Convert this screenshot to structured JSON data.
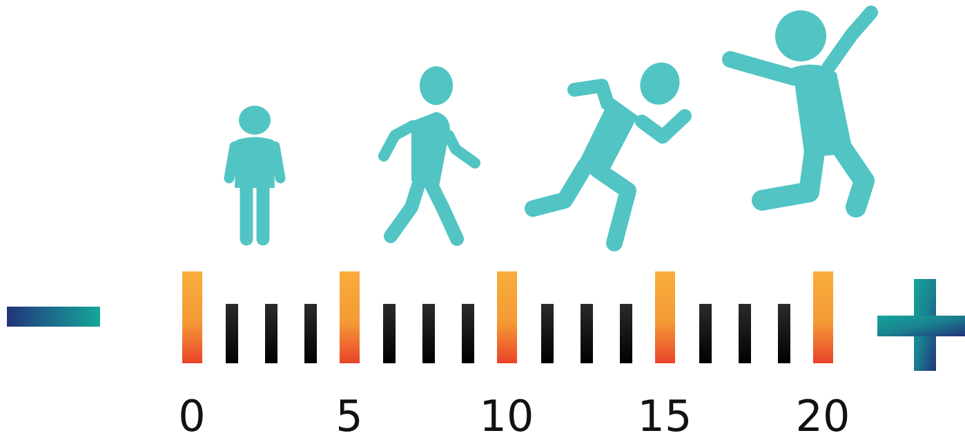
{
  "scale": {
    "labels": [
      "0",
      "5",
      "10",
      "15",
      "20"
    ]
  },
  "figures": [
    {
      "icon": "standing-person-icon"
    },
    {
      "icon": "walking-person-icon"
    },
    {
      "icon": "running-person-icon"
    },
    {
      "icon": "jumping-person-icon"
    }
  ],
  "symbols": {
    "minus_icon": "minus-icon",
    "plus_icon": "plus-icon"
  },
  "colors": {
    "figure": "#52c4c4",
    "major_tick_top": "#f8ad3c",
    "major_tick_bottom": "#e9432a",
    "minor_tick_top": "#2b2b2b",
    "minor_tick_bottom": "#000000",
    "sign_dark": "#22337a",
    "sign_teal": "#16a59a",
    "label": "#111111"
  }
}
